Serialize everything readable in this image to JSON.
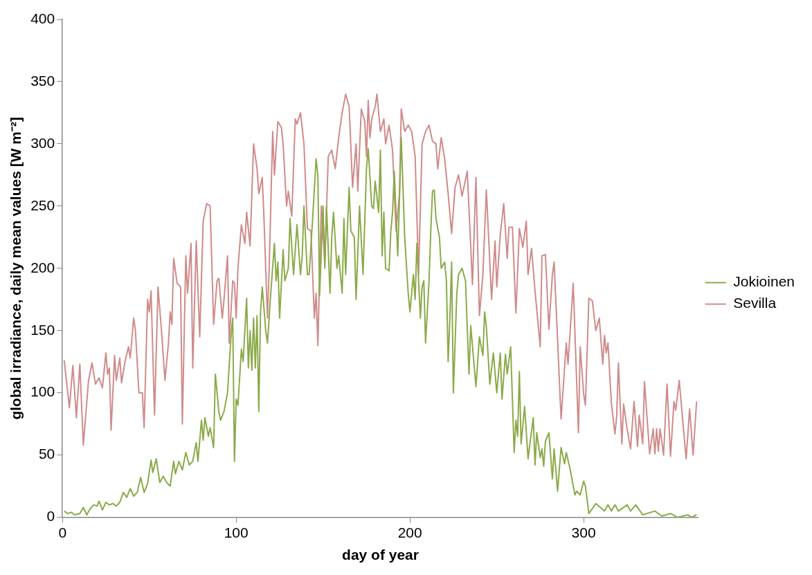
{
  "chart_data": {
    "type": "line",
    "xlabel": "day of year",
    "ylabel": "global irradiance, daily mean values [W m⁻²]",
    "xlim": [
      0,
      366
    ],
    "xticks": [
      0,
      100,
      200,
      300
    ],
    "ylim": [
      0,
      400
    ],
    "yticks": [
      0,
      50,
      100,
      150,
      200,
      250,
      300,
      350,
      400
    ],
    "grid": false,
    "legend": "right",
    "marker": "none",
    "line_style": "solid",
    "series": [
      {
        "name": "Jokioinen",
        "color": "#8aaa48",
        "x": [
          1,
          3,
          5,
          7,
          10,
          12,
          14,
          16,
          18,
          20,
          21,
          23,
          25,
          27,
          29,
          31,
          33,
          35,
          37,
          39,
          41,
          43,
          45,
          47,
          49,
          51,
          52,
          54,
          56,
          58,
          60,
          62,
          64,
          65,
          67,
          69,
          71,
          73,
          75,
          77,
          78,
          80,
          81,
          82,
          84,
          85,
          87,
          88,
          90,
          91,
          93,
          95,
          97,
          98,
          99,
          100,
          101,
          103,
          104,
          106,
          107,
          108,
          109,
          110,
          111,
          112,
          113,
          114,
          115,
          117,
          118,
          120,
          122,
          123,
          124,
          125,
          127,
          128,
          130,
          131,
          133,
          135,
          137,
          138,
          139,
          141,
          142,
          144,
          146,
          147,
          148,
          150,
          151,
          152,
          154,
          155,
          156,
          158,
          159,
          161,
          162,
          163,
          165,
          166,
          168,
          169,
          171,
          173,
          175,
          176,
          178,
          179,
          180,
          182,
          183,
          184,
          185,
          186,
          188,
          189,
          190,
          191,
          193,
          195,
          197,
          199,
          200,
          202,
          203,
          204,
          206,
          207,
          208,
          209,
          211,
          212,
          213,
          214,
          215,
          217,
          218,
          220,
          221,
          222,
          223,
          224,
          225,
          227,
          228,
          230,
          232,
          234,
          235,
          238,
          240,
          242,
          243,
          244,
          246,
          248,
          250,
          252,
          253,
          255,
          256,
          258,
          260,
          261,
          262,
          263,
          264,
          266,
          268,
          271,
          272,
          273,
          275,
          276,
          277,
          278,
          280,
          282,
          283,
          285,
          287,
          289,
          290,
          292,
          295,
          296,
          298,
          300,
          301,
          303,
          304,
          307,
          312,
          314,
          316,
          318,
          320,
          325,
          327,
          330,
          334,
          341,
          345,
          350,
          354,
          360,
          362,
          365
        ],
        "values": [
          5,
          3,
          4,
          2,
          3,
          8,
          2,
          7,
          10,
          9,
          13,
          6,
          12,
          10,
          11,
          9,
          12,
          20,
          16,
          23,
          17,
          20,
          32,
          20,
          27,
          46,
          36,
          47,
          28,
          33,
          28,
          25,
          45,
          35,
          45,
          38,
          52,
          42,
          45,
          60,
          45,
          78,
          62,
          80,
          65,
          72,
          56,
          115,
          85,
          78,
          85,
          100,
          145,
          160,
          45,
          95,
          90,
          135,
          125,
          176,
          120,
          150,
          118,
          160,
          120,
          162,
          85,
          165,
          185,
          150,
          140,
          182,
          220,
          190,
          205,
          160,
          215,
          190,
          200,
          240,
          195,
          235,
          195,
          210,
          250,
          195,
          195,
          240,
          288,
          275,
          178,
          250,
          200,
          250,
          180,
          225,
          245,
          200,
          210,
          180,
          240,
          195,
          265,
          230,
          225,
          175,
          250,
          195,
          280,
          296,
          250,
          248,
          270,
          245,
          295,
          210,
          245,
          200,
          198,
          230,
          245,
          278,
          210,
          305,
          225,
          180,
          165,
          195,
          175,
          220,
          160,
          185,
          190,
          140,
          190,
          230,
          262,
          263,
          240,
          225,
          200,
          205,
          190,
          125,
          160,
          205,
          100,
          180,
          195,
          200,
          190,
          115,
          154,
          105,
          145,
          130,
          165,
          153,
          107,
          132,
          100,
          132,
          95,
          131,
          115,
          137,
          52,
          78,
          65,
          117,
          59,
          89,
          47,
          80,
          42,
          68,
          48,
          55,
          41,
          61,
          68,
          31,
          55,
          21,
          56,
          43,
          52,
          40,
          18,
          21,
          18,
          29,
          25,
          3,
          5,
          11,
          5,
          10,
          5,
          10,
          5,
          10,
          5,
          10,
          2,
          5,
          1,
          3,
          0,
          2,
          0,
          2
        ]
      },
      {
        "name": "Sevilla",
        "color": "#d08a8a",
        "x": [
          1,
          4,
          6,
          8,
          10,
          12,
          15,
          17,
          19,
          21,
          23,
          25,
          26,
          27,
          28,
          30,
          31,
          33,
          34,
          36,
          38,
          39,
          41,
          42,
          44,
          46,
          47,
          49,
          50,
          51,
          53,
          55,
          57,
          59,
          61,
          62,
          63,
          64,
          66,
          68,
          69,
          71,
          72,
          74,
          75,
          77,
          79,
          81,
          82,
          83,
          85,
          87,
          89,
          90,
          92,
          93,
          95,
          96,
          98,
          99,
          100,
          101,
          103,
          105,
          106,
          108,
          110,
          112,
          113,
          115,
          116,
          118,
          119,
          121,
          122,
          124,
          126,
          127,
          129,
          130,
          132,
          134,
          135,
          137,
          139,
          141,
          143,
          145,
          146,
          147,
          149,
          151,
          153,
          155,
          157,
          159,
          161,
          163,
          165,
          167,
          169,
          170,
          172,
          174,
          175,
          176,
          177,
          178,
          180,
          181,
          183,
          185,
          186,
          188,
          190,
          192,
          194,
          195,
          197,
          199,
          201,
          203,
          205,
          207,
          209,
          211,
          213,
          215,
          216,
          218,
          220,
          222,
          224,
          226,
          228,
          230,
          233,
          236,
          238,
          240,
          242,
          244,
          247,
          249,
          250,
          252,
          254,
          256,
          257,
          259,
          261,
          263,
          265,
          267,
          268,
          270,
          272,
          275,
          276,
          278,
          280,
          282,
          283,
          287,
          290,
          291,
          294,
          297,
          298,
          300,
          301,
          303,
          305,
          307,
          309,
          311,
          312,
          313,
          314,
          316,
          318,
          319,
          320,
          322,
          323,
          325,
          327,
          329,
          331,
          332,
          334,
          335,
          338,
          340,
          341,
          342,
          343,
          344,
          346,
          348,
          350,
          352,
          353,
          355,
          359,
          361,
          363,
          365
        ],
        "values": [
          126,
          88,
          122,
          80,
          123,
          58,
          110,
          124,
          107,
          112,
          104,
          132,
          115,
          120,
          70,
          130,
          110,
          128,
          108,
          125,
          137,
          128,
          160,
          150,
          100,
          100,
          72,
          175,
          165,
          182,
          82,
          185,
          150,
          110,
          140,
          165,
          155,
          208,
          188,
          185,
          75,
          210,
          180,
          220,
          120,
          222,
          145,
          238,
          245,
          252,
          250,
          155,
          190,
          192,
          160,
          175,
          210,
          140,
          190,
          188,
          160,
          200,
          235,
          220,
          245,
          218,
          300,
          280,
          260,
          273,
          240,
          160,
          200,
          310,
          275,
          318,
          313,
          300,
          250,
          262,
          242,
          320,
          316,
          325,
          300,
          232,
          230,
          160,
          180,
          138,
          250,
          205,
          290,
          295,
          280,
          305,
          325,
          340,
          330,
          265,
          300,
          262,
          328,
          318,
          290,
          335,
          305,
          320,
          330,
          340,
          310,
          320,
          300,
          315,
          295,
          230,
          260,
          328,
          310,
          315,
          310,
          290,
          195,
          300,
          310,
          315,
          302,
          300,
          280,
          305,
          288,
          260,
          228,
          265,
          275,
          258,
          278,
          187,
          273,
          162,
          195,
          263,
          175,
          222,
          185,
          227,
          252,
          208,
          233,
          233,
          164,
          232,
          217,
          238,
          195,
          216,
          182,
          137,
          210,
          211,
          151,
          195,
          205,
          79,
          140,
          123,
          188,
          68,
          137,
          99,
          90,
          176,
          174,
          150,
          160,
          123,
          146,
          132,
          140,
          91,
          67,
          81,
          124,
          59,
          91,
          71,
          55,
          93,
          57,
          82,
          59,
          109,
          51,
          71,
          51,
          71,
          53,
          71,
          50,
          107,
          49,
          93,
          86,
          110,
          47,
          87,
          50,
          93
        ]
      }
    ]
  }
}
